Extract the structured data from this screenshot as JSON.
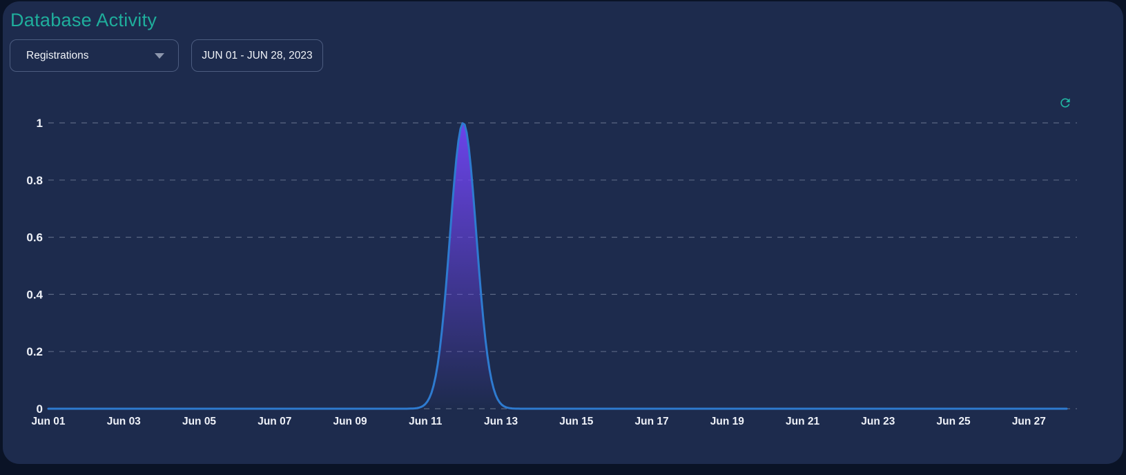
{
  "header": {
    "title": "Database Activity"
  },
  "controls": {
    "metric_dropdown": {
      "value": "Registrations"
    },
    "date_range": {
      "value": "JUN 01 - JUN 28, 2023"
    }
  },
  "icons": {
    "refresh": "refresh-icon",
    "chevron": "chevron-down-icon"
  },
  "theme": {
    "page_bg": "#0a1326",
    "card_bg": "#1d2b4d",
    "title_color": "#1fae9c",
    "accent_teal": "#21b5a2",
    "text_color": "#f0f3f8",
    "border_color": "#4d5d80"
  },
  "chart_data": {
    "type": "area",
    "title": "Database Activity",
    "xlabel": "",
    "ylabel": "",
    "x": [
      "Jun 01",
      "Jun 02",
      "Jun 03",
      "Jun 04",
      "Jun 05",
      "Jun 06",
      "Jun 07",
      "Jun 08",
      "Jun 09",
      "Jun 10",
      "Jun 11",
      "Jun 12",
      "Jun 13",
      "Jun 14",
      "Jun 15",
      "Jun 16",
      "Jun 17",
      "Jun 18",
      "Jun 19",
      "Jun 20",
      "Jun 21",
      "Jun 22",
      "Jun 23",
      "Jun 24",
      "Jun 25",
      "Jun 26",
      "Jun 27",
      "Jun 28"
    ],
    "values": [
      0,
      0,
      0,
      0,
      0,
      0,
      0,
      0,
      0,
      0,
      0,
      1,
      0,
      0,
      0,
      0,
      0,
      0,
      0,
      0,
      0,
      0,
      0,
      0,
      0,
      0,
      0,
      0
    ],
    "x_tick_labels": [
      "Jun 01",
      "Jun 03",
      "Jun 05",
      "Jun 07",
      "Jun 09",
      "Jun 11",
      "Jun 13",
      "Jun 15",
      "Jun 17",
      "Jun 19",
      "Jun 21",
      "Jun 23",
      "Jun 25",
      "Jun 27"
    ],
    "y_ticks": [
      0,
      0.2,
      0.4,
      0.6,
      0.8,
      1
    ],
    "ylim": [
      0,
      1
    ],
    "grid": "horizontal-dashed",
    "legend": "none",
    "peak": {
      "date": "Jun 12",
      "value": 1
    },
    "smoothing_sigma_days": 0.35,
    "colors": {
      "line": "#2e7bd0",
      "area_top": "#7045f2",
      "gridline": "#9aa5bb",
      "tick_text": "#eef1f8"
    }
  }
}
